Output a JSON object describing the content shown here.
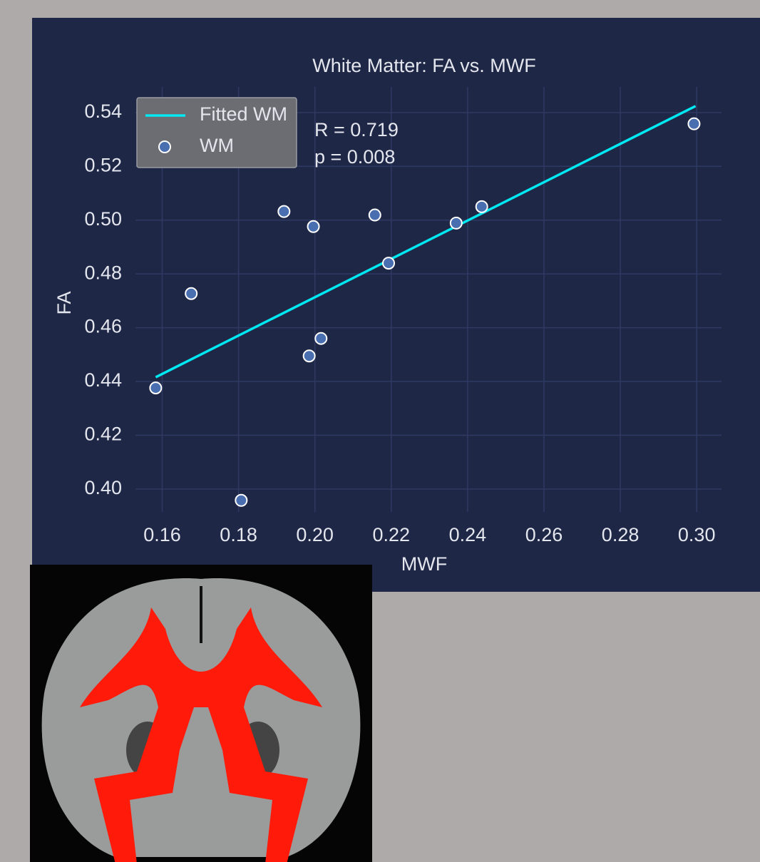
{
  "chart_data": {
    "type": "scatter",
    "title": "White Matter: FA vs. MWF",
    "x_label": "MWF",
    "y_label": "FA",
    "series": [
      {
        "name": "Fitted WM",
        "mode": "lines",
        "color": "#00e8f2",
        "x": [
          0.1583,
          0.2997
        ],
        "values": [
          0.4416,
          0.5424
        ]
      },
      {
        "name": "WM",
        "mode": "markers",
        "color": "#4a6fb0",
        "x": [
          0.1583,
          0.1676,
          0.1807,
          0.1919,
          0.1996,
          0.1985,
          0.2016,
          0.2157,
          0.2193,
          0.237,
          0.2437,
          0.2993
        ],
        "values": [
          0.4376,
          0.4727,
          0.3958,
          0.5032,
          0.4976,
          0.4495,
          0.456,
          0.5019,
          0.484,
          0.4989,
          0.505,
          0.5358
        ]
      }
    ],
    "annotations": [
      "R = 0.719",
      "p = 0.008"
    ],
    "xlim": [
      0.153,
      0.3065
    ],
    "ylim": [
      0.3915,
      0.5495
    ],
    "xticks": [
      0.16,
      0.18,
      {
        "value": 0.2,
        "label": "0.20"
      },
      0.22,
      0.24,
      0.26,
      0.28,
      {
        "value": 0.3,
        "label": "0.30"
      }
    ],
    "yticks": [
      {
        "value": 0.4,
        "label": "0.40"
      },
      0.42,
      0.44,
      0.46,
      0.48,
      {
        "value": 0.5,
        "label": "0.50"
      },
      0.52,
      0.54
    ],
    "grid": true,
    "legend": "upper-left"
  }
}
